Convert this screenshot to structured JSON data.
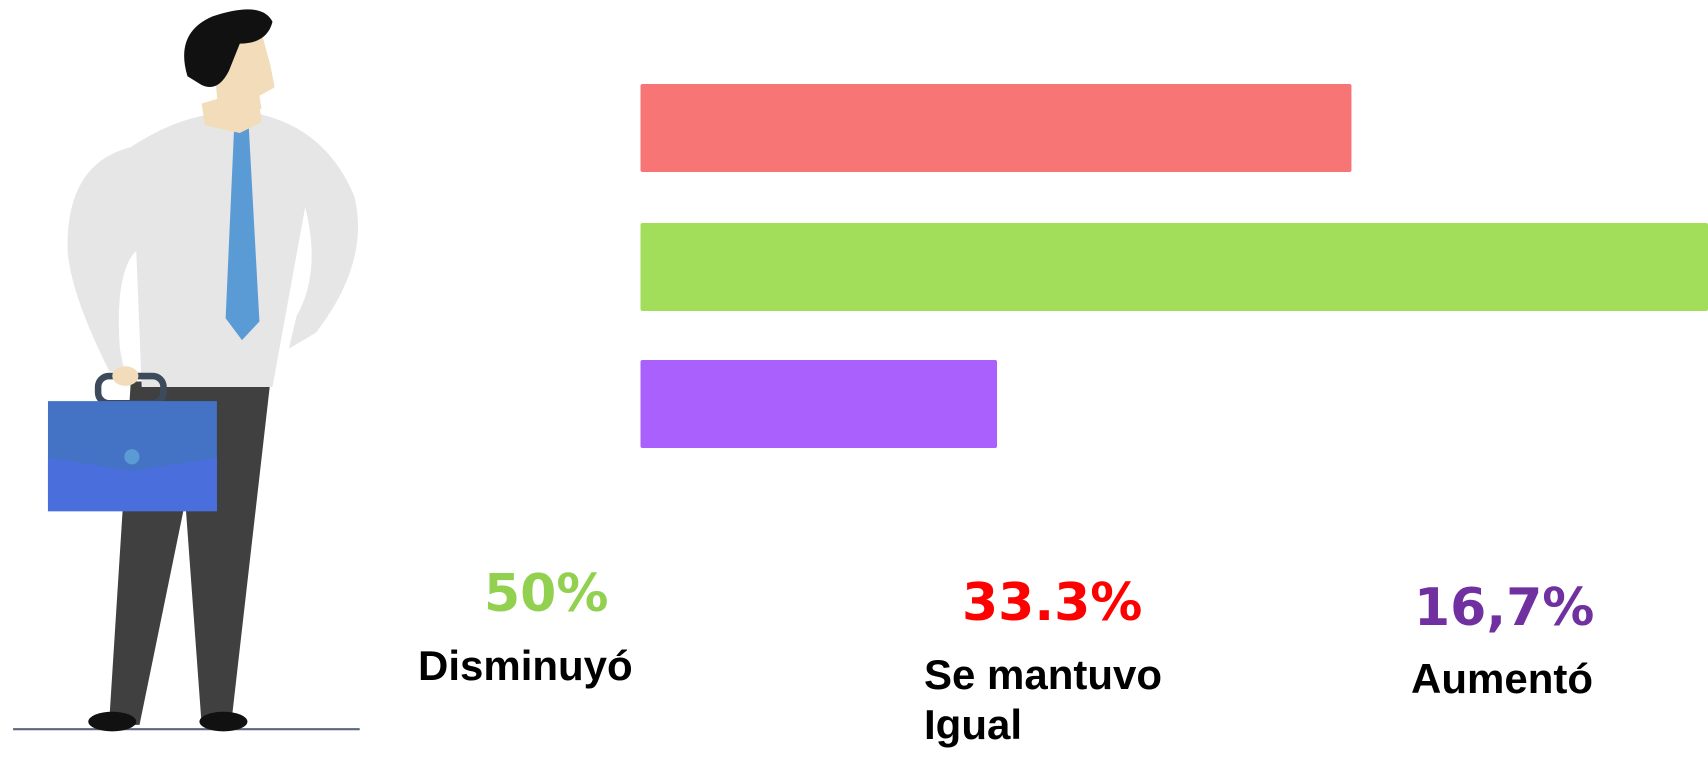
{
  "chart_data": {
    "type": "bar",
    "orientation": "horizontal",
    "categories": [
      "Se mantuvo Igual",
      "Disminuyó",
      "Aumentó"
    ],
    "values": [
      33.3,
      50,
      16.7
    ],
    "value_labels": [
      "33.3%",
      "50%",
      "16,7%"
    ],
    "colors": [
      "#f87575",
      "#a3de5a",
      "#a960fc"
    ],
    "label_colors": [
      "#ff0000",
      "#92d050",
      "#7030a0"
    ],
    "xlim": [
      -30,
      50
    ]
  }
}
